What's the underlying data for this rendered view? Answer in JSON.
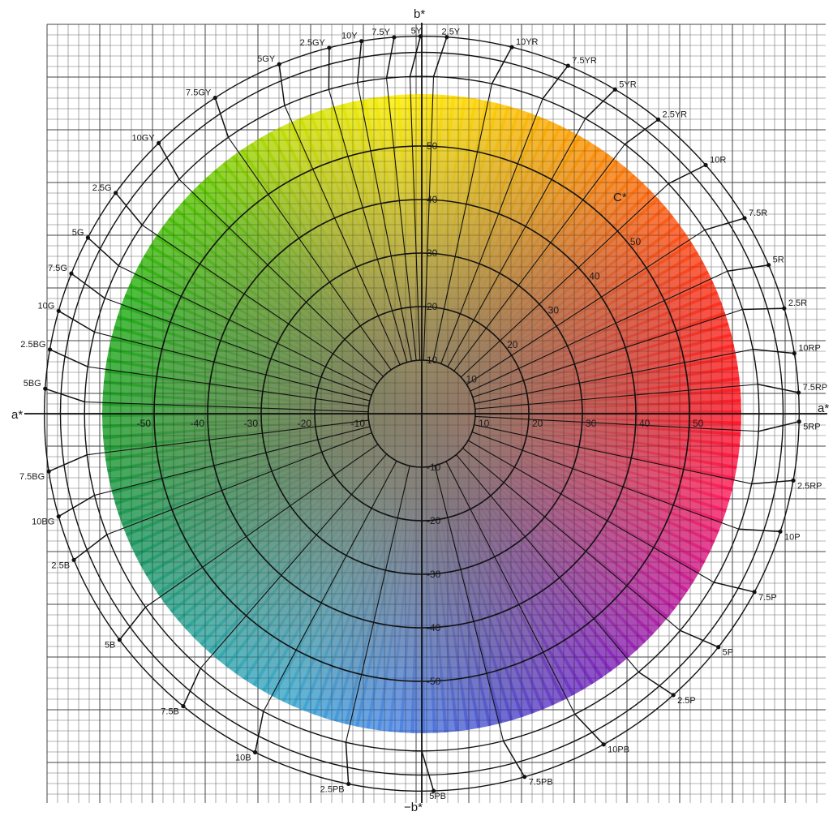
{
  "chart_data": {
    "type": "polar-color-diagram",
    "xlabel": "a*",
    "ylabel": "b*",
    "ylabel_bottom": "−b*",
    "chroma_label": "C*",
    "xlim": [
      -60,
      60
    ],
    "ylim": [
      -60,
      60
    ],
    "grid": true,
    "a_ticks": [
      -50,
      -40,
      -30,
      -20,
      -10,
      10,
      20,
      30,
      40,
      50
    ],
    "b_ticks": [
      50,
      40,
      30,
      20,
      10,
      -10,
      -20,
      -30,
      -40,
      -50
    ],
    "chroma_rings": [
      10,
      20,
      30,
      40,
      50
    ],
    "hues": [
      {
        "label": "2.5Y",
        "angle_deg": 88
      },
      {
        "label": "10YR",
        "angle_deg": 78
      },
      {
        "label": "7.5YR",
        "angle_deg": 69
      },
      {
        "label": "5YR",
        "angle_deg": 61
      },
      {
        "label": "2.5YR",
        "angle_deg": 53
      },
      {
        "label": "10R",
        "angle_deg": 43
      },
      {
        "label": "7.5R",
        "angle_deg": 33
      },
      {
        "label": "5R",
        "angle_deg": 25
      },
      {
        "label": "2.5R",
        "angle_deg": 18
      },
      {
        "label": "10RP",
        "angle_deg": 11
      },
      {
        "label": "7.5RP",
        "angle_deg": 5
      },
      {
        "label": "5RP",
        "angle_deg": -3
      },
      {
        "label": "2.5RP",
        "angle_deg": -12
      },
      {
        "label": "10P",
        "angle_deg": -20
      },
      {
        "label": "7.5P",
        "angle_deg": -30
      },
      {
        "label": "5P",
        "angle_deg": -40
      },
      {
        "label": "2.5P",
        "angle_deg": -50
      },
      {
        "label": "10PB",
        "angle_deg": -63
      },
      {
        "label": "7.5PB",
        "angle_deg": -76
      },
      {
        "label": "5PB",
        "angle_deg": -90
      },
      {
        "label": "2.5PB",
        "angle_deg": -103
      },
      {
        "label": "10B",
        "angle_deg": -118
      },
      {
        "label": "7.5B",
        "angle_deg": -131
      },
      {
        "label": "5B",
        "angle_deg": -145
      },
      {
        "label": "2.5B",
        "angle_deg": -159
      },
      {
        "label": "10BG",
        "angle_deg": -166
      },
      {
        "label": "7.5BG",
        "angle_deg": -173
      },
      {
        "label": "5BG",
        "angle_deg": 178
      },
      {
        "label": "2.5BG",
        "angle_deg": 172
      },
      {
        "label": "10G",
        "angle_deg": 166
      },
      {
        "label": "7.5G",
        "angle_deg": 160
      },
      {
        "label": "5G",
        "angle_deg": 154
      },
      {
        "label": "2.5G",
        "angle_deg": 146
      },
      {
        "label": "10GY",
        "angle_deg": 136
      },
      {
        "label": "7.5GY",
        "angle_deg": 125
      },
      {
        "label": "5GY",
        "angle_deg": 114
      },
      {
        "label": "2.5GY",
        "angle_deg": 106
      },
      {
        "label": "10Y",
        "angle_deg": 101
      },
      {
        "label": "7.5Y",
        "angle_deg": 96
      },
      {
        "label": "5Y",
        "angle_deg": 92
      }
    ]
  }
}
